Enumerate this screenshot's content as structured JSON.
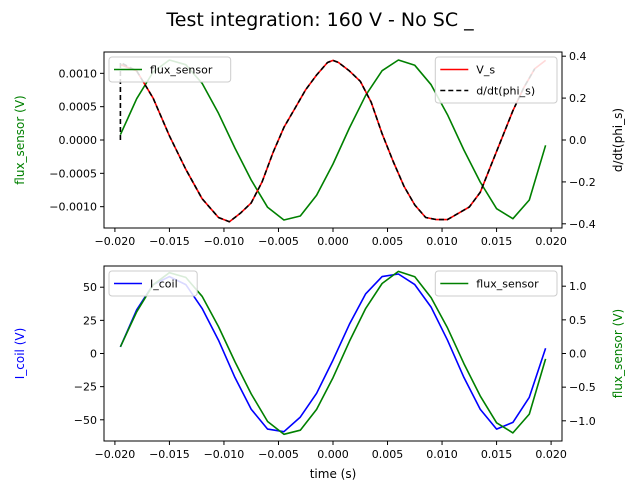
{
  "figure": {
    "title": "Test integration: 160 V - No SC _"
  },
  "chart_data": [
    {
      "type": "line",
      "panel": "top",
      "xlim": [
        -0.021,
        0.021
      ],
      "xticks": [
        -0.02,
        -0.015,
        -0.01,
        -0.005,
        0.0,
        0.005,
        0.01,
        0.015,
        0.02
      ],
      "xtick_labels": [
        "−0.020",
        "−0.015",
        "−0.010",
        "−0.005",
        "0.000",
        "0.005",
        "0.010",
        "0.015",
        "0.020"
      ],
      "left_axis": {
        "label": "flux_sensor (V)",
        "color": "#008000",
        "ylim": [
          -0.00132,
          0.00132
        ],
        "ticks": [
          -0.001,
          -0.0005,
          0.0,
          0.0005,
          0.001
        ],
        "tick_labels": [
          "−0.0010",
          "−0.0005",
          "0.0000",
          "0.0005",
          "0.0010"
        ]
      },
      "right_axis": {
        "label": "d/dt(phi_s)",
        "color": "#000000",
        "ylim": [
          -0.42,
          0.42
        ],
        "ticks": [
          -0.4,
          -0.2,
          0.0,
          0.2,
          0.4
        ],
        "tick_labels": [
          "−0.4",
          "−0.2",
          "0.0",
          "0.2",
          "0.4"
        ]
      },
      "legend_left": {
        "placement": "upper-left",
        "entries": [
          "flux_sensor"
        ]
      },
      "legend_right": {
        "placement": "upper-right",
        "entries": [
          "V_s",
          "d/dt(phi_s)"
        ]
      },
      "series": [
        {
          "name": "flux_sensor",
          "axis": "left",
          "color": "#008000",
          "style": "solid",
          "x": [
            -0.0195,
            -0.018,
            -0.0165,
            -0.015,
            -0.0135,
            -0.012,
            -0.0105,
            -0.009,
            -0.0075,
            -0.006,
            -0.0045,
            -0.003,
            -0.0015,
            0.0,
            0.0015,
            0.003,
            0.0045,
            0.006,
            0.0075,
            0.009,
            0.0105,
            0.012,
            0.0135,
            0.015,
            0.0165,
            0.018,
            0.0195
          ],
          "y": [
            8e-05,
            0.00062,
            0.00102,
            0.0012,
            0.00113,
            0.00085,
            0.0004,
            -0.00012,
            -0.0006,
            -0.00101,
            -0.0012,
            -0.00114,
            -0.00083,
            -0.00036,
            0.00018,
            0.00067,
            0.00104,
            0.0012,
            0.00112,
            0.00083,
            0.00038,
            -0.00015,
            -0.00063,
            -0.00103,
            -0.00118,
            -0.0009,
            -8e-05
          ]
        },
        {
          "name": "V_s",
          "axis": "right",
          "color": "#ff0000",
          "style": "solid",
          "x": [
            -0.0195,
            -0.018,
            -0.0165,
            -0.015,
            -0.0135,
            -0.012,
            -0.0105,
            -0.0095,
            -0.0085,
            -0.0075,
            -0.0065,
            -0.0055,
            -0.0045,
            -0.0035,
            -0.0025,
            -0.0015,
            -0.0005,
            0.0,
            0.0005,
            0.0015,
            0.0025,
            0.0035,
            0.0045,
            0.0055,
            0.0065,
            0.0075,
            0.0085,
            0.0095,
            0.0105,
            0.0115,
            0.0125,
            0.0135,
            0.0145,
            0.0155,
            0.0165,
            0.0175,
            0.0185,
            0.0195
          ],
          "y": [
            0.36,
            0.33,
            0.2,
            0.02,
            -0.14,
            -0.28,
            -0.37,
            -0.39,
            -0.35,
            -0.3,
            -0.2,
            -0.06,
            0.06,
            0.15,
            0.24,
            0.31,
            0.37,
            0.38,
            0.37,
            0.33,
            0.28,
            0.18,
            0.03,
            -0.1,
            -0.22,
            -0.31,
            -0.37,
            -0.38,
            -0.38,
            -0.35,
            -0.32,
            -0.25,
            -0.12,
            0.01,
            0.14,
            0.25,
            0.34,
            0.38
          ]
        },
        {
          "name": "d/dt(phi_s)",
          "axis": "right",
          "color": "#000000",
          "style": "dashed",
          "x": [
            -0.0195,
            -0.0195,
            -0.018,
            -0.0165,
            -0.015,
            -0.0135,
            -0.012,
            -0.0105,
            -0.0095,
            -0.0085,
            -0.0075,
            -0.0065,
            -0.0055,
            -0.0045,
            -0.0035,
            -0.0025,
            -0.0015,
            -0.0005,
            0.0,
            0.0005,
            0.0015,
            0.0025,
            0.0035,
            0.0045,
            0.0055,
            0.0065,
            0.0075,
            0.0085,
            0.0095,
            0.0105,
            0.0115,
            0.0125,
            0.0135,
            0.0145,
            0.0155,
            0.0165,
            0.0175,
            0.0185
          ],
          "y": [
            0.0,
            0.37,
            0.33,
            0.2,
            0.02,
            -0.14,
            -0.28,
            -0.37,
            -0.39,
            -0.35,
            -0.3,
            -0.2,
            -0.06,
            0.06,
            0.15,
            0.24,
            0.31,
            0.37,
            0.38,
            0.37,
            0.33,
            0.28,
            0.18,
            0.03,
            -0.1,
            -0.22,
            -0.31,
            -0.37,
            -0.38,
            -0.38,
            -0.35,
            -0.32,
            -0.25,
            -0.12,
            0.01,
            0.14,
            0.25,
            0.34
          ]
        }
      ]
    },
    {
      "type": "line",
      "panel": "bottom",
      "xlim": [
        -0.021,
        0.021
      ],
      "xlabel": "time (s)",
      "xticks": [
        -0.02,
        -0.015,
        -0.01,
        -0.005,
        0.0,
        0.005,
        0.01,
        0.015,
        0.02
      ],
      "xtick_labels": [
        "−0.020",
        "−0.015",
        "−0.010",
        "−0.005",
        "0.000",
        "0.005",
        "0.010",
        "0.015",
        "0.020"
      ],
      "left_axis": {
        "label": "I_coil (V)",
        "color": "#0000ff",
        "ylim": [
          -66,
          66
        ],
        "ticks": [
          -50,
          -25,
          0,
          25,
          50
        ],
        "tick_labels": [
          "−50",
          "−25",
          "0",
          "25",
          "50"
        ]
      },
      "right_axis": {
        "label": "flux_sensor (V)",
        "color": "#008000",
        "ylim": [
          -1.3,
          1.3
        ],
        "ticks": [
          -1.0,
          -0.5,
          0.0,
          0.5,
          1.0
        ],
        "tick_labels": [
          "−1.0",
          "−0.5",
          "0.0",
          "0.5",
          "1.0"
        ]
      },
      "legend_left": {
        "placement": "upper-left",
        "entries": [
          "I_coil"
        ]
      },
      "legend_right": {
        "placement": "upper-right",
        "entries": [
          "flux_sensor"
        ]
      },
      "series": [
        {
          "name": "I_coil",
          "axis": "left",
          "color": "#0000ff",
          "style": "solid",
          "x": [
            -0.0195,
            -0.018,
            -0.0165,
            -0.015,
            -0.0135,
            -0.012,
            -0.0105,
            -0.009,
            -0.0075,
            -0.006,
            -0.0045,
            -0.003,
            -0.0015,
            0.0,
            0.0015,
            0.003,
            0.0045,
            0.006,
            0.0075,
            0.009,
            0.0105,
            0.012,
            0.0135,
            0.015,
            0.0165,
            0.018,
            0.0195
          ],
          "y": [
            5,
            33,
            52,
            58,
            52,
            34,
            10,
            -18,
            -42,
            -57,
            -59,
            -48,
            -30,
            -5,
            22,
            45,
            58,
            60,
            52,
            35,
            10,
            -18,
            -42,
            -57,
            -52,
            -33,
            4
          ]
        },
        {
          "name": "flux_sensor",
          "axis": "right",
          "color": "#008000",
          "style": "solid",
          "x": [
            -0.0195,
            -0.018,
            -0.0165,
            -0.015,
            -0.0135,
            -0.012,
            -0.0105,
            -0.009,
            -0.0075,
            -0.006,
            -0.0045,
            -0.003,
            -0.0015,
            0.0,
            0.0015,
            0.003,
            0.0045,
            0.006,
            0.0075,
            0.009,
            0.0105,
            0.012,
            0.0135,
            0.015,
            0.0165,
            0.018,
            0.0195
          ],
          "y": [
            0.1,
            0.62,
            1.02,
            1.2,
            1.13,
            0.85,
            0.4,
            -0.12,
            -0.6,
            -1.01,
            -1.2,
            -1.14,
            -0.83,
            -0.36,
            0.18,
            0.67,
            1.04,
            1.22,
            1.14,
            0.83,
            0.38,
            -0.15,
            -0.63,
            -1.03,
            -1.18,
            -0.9,
            -0.08
          ]
        }
      ]
    }
  ]
}
